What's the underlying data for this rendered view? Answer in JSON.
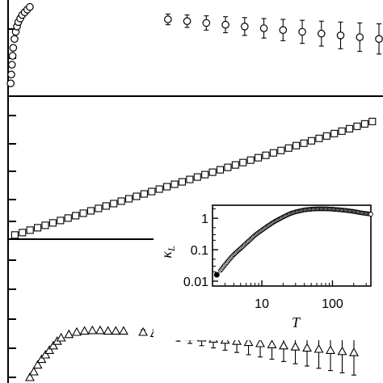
{
  "chart_data": [
    {
      "panel": "top",
      "type": "scatter",
      "marker": "circle",
      "error_bars": true,
      "title": "",
      "xlabel": "",
      "ylabel": "",
      "points": [
        [
          4,
          8
        ],
        [
          5,
          18
        ],
        [
          6,
          29
        ],
        [
          7,
          39
        ],
        [
          8,
          48
        ],
        [
          10,
          58
        ],
        [
          12,
          66
        ],
        [
          14,
          72
        ],
        [
          16,
          77
        ],
        [
          19,
          81
        ],
        [
          22,
          85
        ],
        [
          26,
          88
        ],
        [
          30,
          91
        ],
        [
          34,
          94
        ],
        [
          250,
          80
        ],
        [
          280,
          78
        ],
        [
          310,
          76
        ],
        [
          340,
          74
        ],
        [
          370,
          72
        ],
        [
          400,
          70
        ],
        [
          430,
          68
        ],
        [
          460,
          66
        ],
        [
          490,
          64
        ],
        [
          520,
          62
        ],
        [
          550,
          60
        ],
        [
          580,
          58
        ]
      ],
      "errors": [
        0.5,
        0.5,
        0.5,
        0.5,
        0.5,
        0.5,
        0.5,
        0.5,
        0.5,
        0.5,
        0.5,
        0.5,
        0.5,
        0.5,
        6,
        7,
        8,
        9,
        10,
        11,
        12,
        13,
        14,
        15,
        16,
        17
      ]
    },
    {
      "panel": "middle",
      "type": "scatter",
      "marker": "square",
      "error_bars": true,
      "title": "",
      "xlabel": "",
      "ylabel": "",
      "x_start": 3,
      "x_step": 12,
      "count": 48,
      "y_start": 1.5,
      "y_slope": 0.85
    },
    {
      "panel": "inset",
      "type": "scatter",
      "marker": "circle",
      "title": "",
      "xlabel": "T",
      "ylabel": "κ",
      "ylabel_sub": "L",
      "xscale": "log",
      "yscale": "log",
      "xlim": [
        2,
        350
      ],
      "ylim": [
        0.007,
        2.6
      ],
      "xticks": [
        10,
        100
      ],
      "xtick_labels": [
        "10",
        "100"
      ],
      "yticks": [
        0.01,
        0.1,
        1
      ],
      "ytick_labels": [
        "0.01",
        "0.1",
        "1"
      ],
      "filled_point": {
        "x": 2.3,
        "y": 0.016
      },
      "curve": [
        [
          2.6,
          0.022
        ],
        [
          3,
          0.033
        ],
        [
          3.5,
          0.05
        ],
        [
          4,
          0.07
        ],
        [
          5,
          0.11
        ],
        [
          6,
          0.16
        ],
        [
          7,
          0.22
        ],
        [
          8,
          0.29
        ],
        [
          10,
          0.42
        ],
        [
          12,
          0.56
        ],
        [
          15,
          0.78
        ],
        [
          20,
          1.1
        ],
        [
          25,
          1.4
        ],
        [
          30,
          1.6
        ],
        [
          40,
          1.85
        ],
        [
          50,
          1.95
        ],
        [
          60,
          2.0
        ],
        [
          80,
          2.0
        ],
        [
          100,
          1.95
        ],
        [
          150,
          1.8
        ],
        [
          200,
          1.65
        ],
        [
          250,
          1.5
        ],
        [
          300,
          1.42
        ],
        [
          350,
          1.35
        ]
      ]
    },
    {
      "panel": "bottom",
      "type": "scatter",
      "marker": "triangle",
      "error_bars": true,
      "title": "",
      "xlabel": "",
      "ylabel": "",
      "points": [
        [
          30,
          5
        ],
        [
          35,
          10
        ],
        [
          40,
          16
        ],
        [
          45,
          21
        ],
        [
          50,
          25
        ],
        [
          55,
          29
        ],
        [
          60,
          33
        ],
        [
          65,
          37
        ],
        [
          70,
          40
        ],
        [
          80,
          43
        ],
        [
          90,
          45
        ],
        [
          100,
          46
        ],
        [
          110,
          46.5
        ],
        [
          120,
          46.5
        ],
        [
          130,
          46
        ],
        [
          140,
          46
        ],
        [
          150,
          46
        ],
        [
          175,
          45
        ],
        [
          190,
          44
        ],
        [
          205,
          43
        ],
        [
          220,
          42
        ],
        [
          235,
          41
        ],
        [
          250,
          40
        ],
        [
          265,
          39
        ],
        [
          280,
          38
        ],
        [
          295,
          37
        ],
        [
          310,
          36
        ],
        [
          325,
          35
        ],
        [
          340,
          34
        ],
        [
          355,
          33
        ],
        [
          370,
          32
        ],
        [
          385,
          31
        ],
        [
          400,
          30
        ],
        [
          415,
          29
        ],
        [
          430,
          28
        ],
        [
          445,
          27
        ]
      ],
      "errors": [
        0.5,
        0.5,
        0.5,
        0.5,
        0.5,
        0.5,
        0.5,
        0.5,
        0.5,
        0.5,
        0.5,
        0.5,
        0.5,
        0.5,
        0.5,
        0.5,
        0.5,
        2,
        3,
        4,
        5,
        6,
        7,
        8,
        9,
        10,
        11,
        12,
        13,
        14,
        15,
        16,
        17,
        18,
        19,
        20
      ]
    }
  ]
}
